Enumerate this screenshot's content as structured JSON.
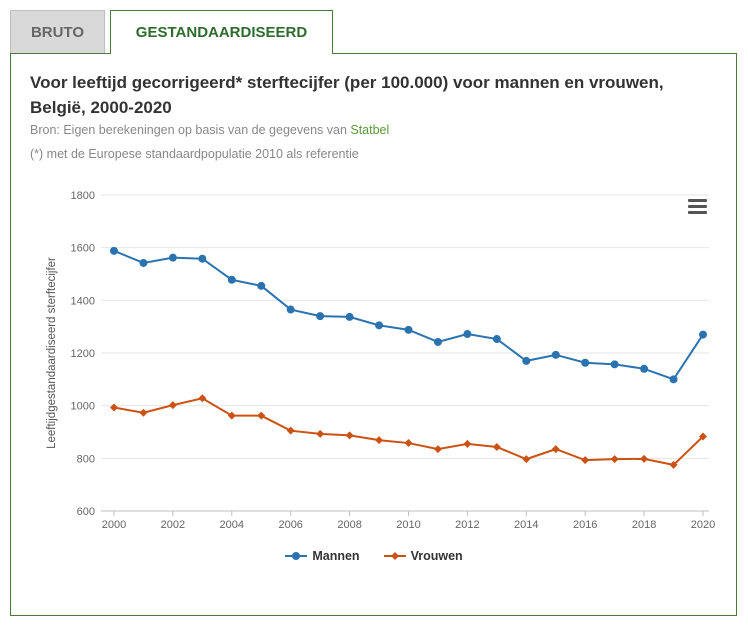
{
  "tabs": [
    {
      "label": "BRUTO",
      "active": false
    },
    {
      "label": "GESTANDAARDISEERD",
      "active": true
    }
  ],
  "header": {
    "title": "Voor leeftijd gecorrigeerd* sterftecijfer (per 100.000) voor mannen en vrouwen, België, 2000-2020",
    "source_prefix": "Bron: Eigen berekeningen op basis van de gegevens van ",
    "source_link": "Statbel",
    "note": "(*) met de Europese standaardpopulatie 2010 als referentie"
  },
  "menu_icon": "hamburger-menu-icon",
  "colors": {
    "mannen": "#2b73b0",
    "vrouwen": "#cc5214",
    "accent": "#2e6b2e"
  },
  "chart_data": {
    "type": "line",
    "title": "Voor leeftijd gecorrigeerd* sterftecijfer (per 100.000) voor mannen en vrouwen, België, 2000-2020",
    "xlabel": "",
    "ylabel": "Leeftijdgestandaardiseerd sterftecijfer",
    "x": [
      2000,
      2001,
      2002,
      2003,
      2004,
      2005,
      2006,
      2007,
      2008,
      2009,
      2010,
      2011,
      2012,
      2013,
      2014,
      2015,
      2016,
      2017,
      2018,
      2019,
      2020
    ],
    "xticks": [
      "2000",
      "2002",
      "2004",
      "2006",
      "2008",
      "2010",
      "2012",
      "2014",
      "2016",
      "2018",
      "2020"
    ],
    "yticks": [
      "600",
      "800",
      "1000",
      "1200",
      "1400",
      "1600",
      "1800"
    ],
    "ylim": [
      600,
      1800
    ],
    "grid": true,
    "legend": "bottom-center",
    "series": [
      {
        "name": "Mannen",
        "marker": "circle",
        "values": [
          1588,
          1542,
          1562,
          1558,
          1478,
          1455,
          1365,
          1340,
          1337,
          1305,
          1288,
          1242,
          1272,
          1253,
          1170,
          1193,
          1163,
          1157,
          1140,
          1100,
          1270
        ]
      },
      {
        "name": "Vrouwen",
        "marker": "diamond",
        "values": [
          993,
          973,
          1002,
          1028,
          962,
          962,
          905,
          893,
          887,
          869,
          858,
          835,
          855,
          843,
          797,
          835,
          793,
          797,
          798,
          775,
          883
        ]
      }
    ]
  }
}
